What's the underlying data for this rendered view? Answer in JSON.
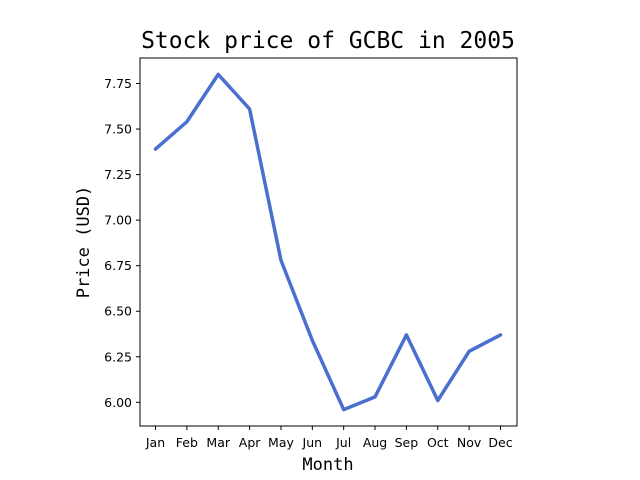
{
  "chart_data": {
    "type": "line",
    "title": "Stock price of GCBC in 2005",
    "xlabel": "Month",
    "ylabel": "Price (USD)",
    "categories": [
      "Jan",
      "Feb",
      "Mar",
      "Apr",
      "May",
      "Jun",
      "Jul",
      "Aug",
      "Sep",
      "Oct",
      "Nov",
      "Dec"
    ],
    "series": [
      {
        "values": [
          7.39,
          7.54,
          7.8,
          7.61,
          6.78,
          6.34,
          5.96,
          6.03,
          6.37,
          6.01,
          6.28,
          6.37
        ],
        "color": "#4a6fcf"
      }
    ],
    "yticks": [
      "6.00",
      "6.25",
      "6.50",
      "6.75",
      "7.00",
      "7.25",
      "7.50",
      "7.75"
    ],
    "ylim": [
      5.87,
      7.89
    ],
    "grid": false,
    "legend": "none"
  }
}
